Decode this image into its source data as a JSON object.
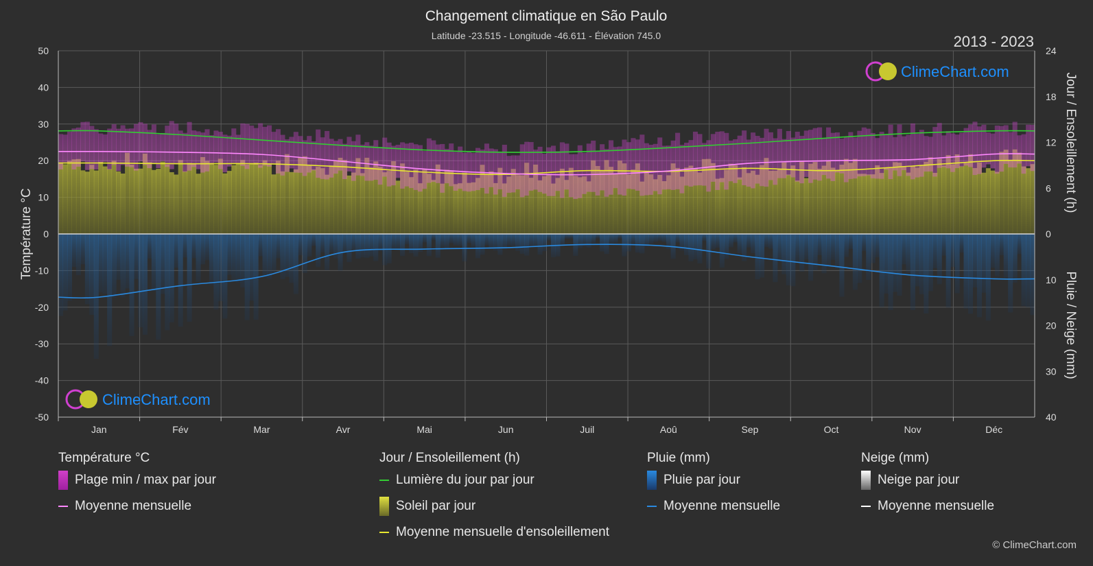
{
  "title": "Changement climatique en São Paulo",
  "subtitle": "Latitude -23.515 - Longitude -46.611 - Élévation 745.0",
  "period": "2013 - 2023",
  "brand": "ClimeChart.com",
  "copyright": "© ClimeChart.com",
  "colors": {
    "background": "#2e2e2e",
    "temp_band": "#d040c8",
    "temp_mean": "#ff88ff",
    "daylight": "#33cc33",
    "sunshine_band": "#a8a832",
    "sunshine_mean": "#e8e830",
    "rain_band": "#2a6aa8",
    "rain_mean": "#2a8ae0",
    "snow_mean": "#ffffff",
    "brand_text": "#1e90ff"
  },
  "chart_data": {
    "type": "line",
    "months": [
      "Jan",
      "Fév",
      "Mar",
      "Avr",
      "Mai",
      "Jun",
      "Juil",
      "Aoû",
      "Sep",
      "Oct",
      "Nov",
      "Déc"
    ],
    "y_left": {
      "label": "Température °C",
      "min": -50,
      "max": 50,
      "ticks": [
        "50",
        "40",
        "30",
        "20",
        "10",
        "0",
        "-10",
        "-20",
        "-30",
        "-40",
        "-50"
      ]
    },
    "y_right_top": {
      "label": "Jour / Ensoleillement (h)",
      "min": 0,
      "max": 24,
      "ticks": [
        "24",
        "18",
        "12",
        "6",
        "0"
      ]
    },
    "y_right_bottom": {
      "label": "Pluie / Neige (mm)",
      "min": 0,
      "max": 40,
      "ticks": [
        "10",
        "20",
        "30",
        "40"
      ]
    },
    "grid": true,
    "series": [
      {
        "name": "Lumière du jour par jour",
        "unit": "h",
        "values": [
          13.5,
          13.0,
          12.3,
          11.6,
          11.0,
          10.7,
          10.8,
          11.3,
          11.9,
          12.6,
          13.2,
          13.5
        ]
      },
      {
        "name": "Moyenne mensuelle d'ensoleillement",
        "unit": "h",
        "values": [
          9.3,
          9.2,
          9.2,
          8.8,
          8.1,
          7.8,
          8.3,
          8.2,
          8.6,
          8.3,
          8.9,
          9.6
        ]
      },
      {
        "name": "Moyenne mensuelle",
        "unit": "°C",
        "values": [
          22.5,
          22.3,
          21.7,
          19.8,
          17.7,
          16.5,
          16.2,
          17.2,
          19.3,
          20.0,
          20.3,
          21.8
        ]
      },
      {
        "name": "Plage min / max par jour (max)",
        "unit": "°C",
        "values": [
          28.0,
          28.5,
          27.5,
          25.5,
          23.5,
          22.5,
          23.0,
          25.0,
          26.5,
          27.0,
          27.5,
          28.0
        ]
      },
      {
        "name": "Plage min / max par jour (min)",
        "unit": "°C",
        "values": [
          19.0,
          19.0,
          18.5,
          16.5,
          13.5,
          12.0,
          11.5,
          12.5,
          14.5,
          16.0,
          17.0,
          18.5
        ]
      },
      {
        "name": "Pluie (Moyenne mensuelle)",
        "unit": "mm",
        "values": [
          13.8,
          11.3,
          9.3,
          4.0,
          3.3,
          3.0,
          2.3,
          2.7,
          5.0,
          7.0,
          9.0,
          9.8
        ]
      }
    ]
  },
  "legend": {
    "groups": [
      {
        "title": "Température °C",
        "items": [
          {
            "label": "Plage min / max par jour",
            "swatch": "box",
            "color": "#d040c8"
          },
          {
            "label": "Moyenne mensuelle",
            "swatch": "line",
            "color": "#ff88ff"
          }
        ]
      },
      {
        "title": "Jour / Ensoleillement (h)",
        "items": [
          {
            "label": "Lumière du jour par jour",
            "swatch": "line",
            "color": "#33cc33"
          },
          {
            "label": "Soleil par jour",
            "swatch": "box",
            "color": "#c8c83a"
          },
          {
            "label": "Moyenne mensuelle d'ensoleillement",
            "swatch": "line",
            "color": "#e8e830"
          }
        ]
      },
      {
        "title": "Pluie (mm)",
        "items": [
          {
            "label": "Pluie par jour",
            "swatch": "box",
            "color": "#2a7ad0"
          },
          {
            "label": "Moyenne mensuelle",
            "swatch": "line",
            "color": "#2a8ae0"
          }
        ]
      },
      {
        "title": "Neige (mm)",
        "items": [
          {
            "label": "Neige par jour",
            "swatch": "box",
            "color": "#dddddd"
          },
          {
            "label": "Moyenne mensuelle",
            "swatch": "line",
            "color": "#ffffff"
          }
        ]
      }
    ]
  }
}
